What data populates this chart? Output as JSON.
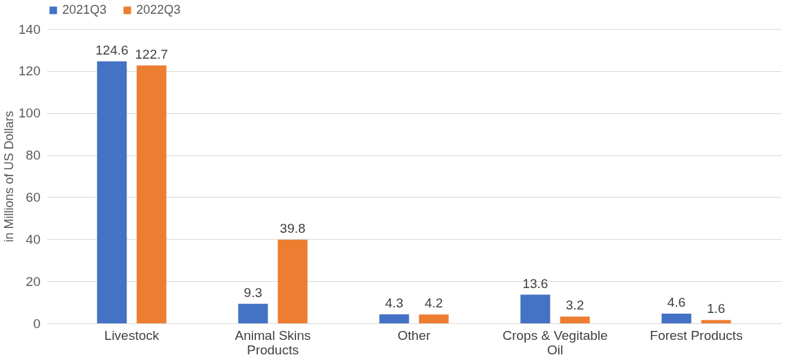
{
  "chart_data": {
    "type": "bar",
    "ylabel": "in Millions of US Dollars",
    "categories": [
      "Livestock",
      "Animal Skins Products",
      "Other",
      "Crops & Vegitable Oil",
      "Forest Products"
    ],
    "series": [
      {
        "name": "2021Q3",
        "color": "#4472c4",
        "values": [
          124.6,
          9.3,
          4.3,
          13.6,
          4.6
        ]
      },
      {
        "name": "2022Q3",
        "color": "#ed7d31",
        "values": [
          122.7,
          39.8,
          4.2,
          3.2,
          1.6
        ]
      }
    ],
    "ylim": [
      0,
      140
    ],
    "yticks": [
      0,
      20,
      40,
      60,
      80,
      100,
      120,
      140
    ],
    "grid": "y",
    "legend": "top",
    "data_labels": true
  }
}
